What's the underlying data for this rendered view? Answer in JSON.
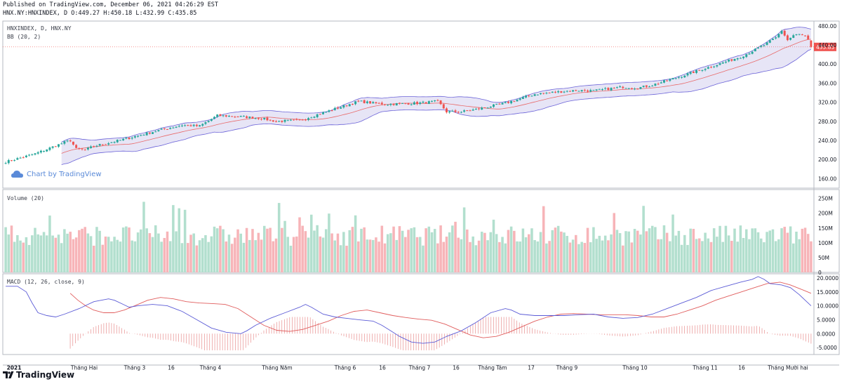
{
  "header": {
    "published": "Published on TradingView.com, December 06, 2021 04:26:29 EST",
    "ohlc": "HNX.NY:HNXINDEX, D O:449.27 H:450.18 L:432.99 C:435.85"
  },
  "panels": {
    "price_title": "HNXINDEX, D, HNX.NY",
    "bb_title": "BB (20, 2)",
    "volume_title": "Volume (20)",
    "macd_title": "MACD (12, 26, close, 9)"
  },
  "watermark": "Chart by TradingView",
  "footer": {
    "brand": "TradingView"
  },
  "colors": {
    "up": "#26a69a",
    "down": "#ef5350",
    "vol_up": "#b2dfce",
    "vol_down": "#f7b4b8",
    "bb_fill": "#e3e1f5",
    "bb_band": "#6b63d8",
    "bb_basis": "#e86a6a",
    "macd": "#5b5bd6",
    "signal": "#e05c5c",
    "hist": "#e88f8f",
    "last_price_bg": "#ef5350"
  },
  "chart_data": [
    {
      "type": "candlestick",
      "title": "HNXINDEX, D, HNX.NY",
      "indicator": "BB (20, 2)",
      "last_price_label": "435.85",
      "ylim": [
        140,
        490
      ],
      "y_ticks": [
        "480.00",
        "440.00",
        "400.00",
        "360.00",
        "320.00",
        "280.00",
        "240.00",
        "200.00",
        "160.00"
      ],
      "close_anchors": [
        [
          0,
          195
        ],
        [
          10,
          212
        ],
        [
          20,
          236
        ],
        [
          22,
          240
        ],
        [
          24,
          222
        ],
        [
          27,
          220
        ],
        [
          30,
          228
        ],
        [
          40,
          242
        ],
        [
          50,
          258
        ],
        [
          60,
          272
        ],
        [
          66,
          270
        ],
        [
          72,
          292
        ],
        [
          80,
          290
        ],
        [
          87,
          286
        ],
        [
          92,
          280
        ],
        [
          100,
          282
        ],
        [
          110,
          302
        ],
        [
          120,
          322
        ],
        [
          125,
          318
        ],
        [
          130,
          316
        ],
        [
          140,
          318
        ],
        [
          147,
          322
        ],
        [
          150,
          300
        ],
        [
          155,
          300
        ],
        [
          160,
          305
        ],
        [
          170,
          318
        ],
        [
          180,
          337
        ],
        [
          190,
          343
        ],
        [
          195,
          345
        ],
        [
          200,
          344
        ],
        [
          210,
          352
        ],
        [
          215,
          350
        ],
        [
          220,
          356
        ],
        [
          230,
          375
        ],
        [
          240,
          395
        ],
        [
          250,
          415
        ],
        [
          255,
          430
        ],
        [
          258,
          440
        ],
        [
          262,
          455
        ],
        [
          264,
          470
        ],
        [
          266,
          450
        ],
        [
          268,
          460
        ],
        [
          270,
          462
        ],
        [
          272,
          458
        ],
        [
          273,
          450
        ],
        [
          274,
          435.85
        ]
      ]
    },
    {
      "type": "bar",
      "title": "Volume (20)",
      "ylim": [
        0,
        280
      ],
      "y_ticks": [
        "250M",
        "200M",
        "150M",
        "100M",
        "50M",
        "0"
      ]
    },
    {
      "type": "line",
      "title": "MACD (12, 26, close, 9)",
      "ylim": [
        -7.5,
        21.5
      ],
      "y_ticks": [
        "20.0000",
        "15.0000",
        "10.0000",
        "5.0000",
        "0.0000",
        "-5.0000"
      ],
      "macd_anchors": [
        [
          0,
          17
        ],
        [
          4,
          17
        ],
        [
          7,
          15
        ],
        [
          9,
          11
        ],
        [
          11,
          7.5
        ],
        [
          14,
          6.5
        ],
        [
          17,
          6.0
        ],
        [
          20,
          7.0
        ],
        [
          25,
          9.0
        ],
        [
          30,
          11.5
        ],
        [
          35,
          12.5
        ],
        [
          37,
          12.0
        ],
        [
          40,
          10.5
        ],
        [
          42,
          9.5
        ],
        [
          45,
          10.0
        ],
        [
          50,
          10.5
        ],
        [
          55,
          10.0
        ],
        [
          60,
          8.0
        ],
        [
          65,
          5.0
        ],
        [
          70,
          2.0
        ],
        [
          75,
          0.5
        ],
        [
          80,
          0.0
        ],
        [
          82,
          1.0
        ],
        [
          85,
          3.0
        ],
        [
          90,
          5.5
        ],
        [
          95,
          7.5
        ],
        [
          100,
          9.5
        ],
        [
          102,
          10.5
        ],
        [
          104,
          9.5
        ],
        [
          108,
          7.0
        ],
        [
          112,
          6.0
        ],
        [
          116,
          5.5
        ],
        [
          120,
          5.0
        ],
        [
          125,
          4.5
        ],
        [
          128,
          3.0
        ],
        [
          131,
          1.0
        ],
        [
          134,
          -1.0
        ],
        [
          138,
          -3.0
        ],
        [
          142,
          -3.5
        ],
        [
          146,
          -3.0
        ],
        [
          150,
          -1.0
        ],
        [
          155,
          1.0
        ],
        [
          160,
          4.0
        ],
        [
          165,
          7.5
        ],
        [
          170,
          9.0
        ],
        [
          172,
          8.5
        ],
        [
          175,
          7.0
        ],
        [
          180,
          6.5
        ],
        [
          185,
          6.5
        ],
        [
          190,
          6.5
        ],
        [
          195,
          6.8
        ],
        [
          200,
          7.0
        ],
        [
          205,
          6.0
        ],
        [
          210,
          5.5
        ],
        [
          215,
          5.8
        ],
        [
          220,
          7.0
        ],
        [
          225,
          9.0
        ],
        [
          230,
          11.0
        ],
        [
          235,
          13.0
        ],
        [
          240,
          15.5
        ],
        [
          245,
          17.0
        ],
        [
          250,
          18.5
        ],
        [
          254,
          19.5
        ],
        [
          256,
          20.5
        ],
        [
          258,
          19.5
        ],
        [
          260,
          18.0
        ],
        [
          264,
          17.5
        ],
        [
          267,
          16.5
        ],
        [
          270,
          14.0
        ],
        [
          272,
          12.0
        ],
        [
          274,
          10.0
        ]
      ],
      "signal_anchors": [
        [
          25,
          14.5
        ],
        [
          28,
          12.0
        ],
        [
          31,
          10.0
        ],
        [
          34,
          8.5
        ],
        [
          38,
          7.5
        ],
        [
          42,
          7.5
        ],
        [
          46,
          8.5
        ],
        [
          50,
          10.0
        ],
        [
          55,
          12.0
        ],
        [
          60,
          13.0
        ],
        [
          65,
          12.5
        ],
        [
          70,
          11.5
        ],
        [
          75,
          11.0
        ],
        [
          80,
          10.8
        ],
        [
          85,
          10.5
        ],
        [
          90,
          9.0
        ],
        [
          95,
          6.0
        ],
        [
          100,
          3.0
        ],
        [
          105,
          1.2
        ],
        [
          110,
          0.8
        ],
        [
          115,
          1.5
        ],
        [
          120,
          3.0
        ],
        [
          125,
          4.5
        ],
        [
          130,
          6.5
        ],
        [
          135,
          8.0
        ],
        [
          140,
          8.5
        ],
        [
          145,
          7.5
        ],
        [
          150,
          6.5
        ],
        [
          155,
          5.8
        ],
        [
          160,
          5.2
        ],
        [
          165,
          4.8
        ],
        [
          170,
          3.5
        ],
        [
          175,
          1.5
        ],
        [
          180,
          -0.5
        ],
        [
          185,
          -1.5
        ],
        [
          190,
          -1.0
        ],
        [
          195,
          0.5
        ],
        [
          200,
          2.5
        ],
        [
          205,
          4.5
        ],
        [
          210,
          6.0
        ],
        [
          215,
          7.0
        ],
        [
          220,
          7.2
        ],
        [
          225,
          7.0
        ],
        [
          230,
          6.8
        ],
        [
          235,
          6.8
        ],
        [
          240,
          6.8
        ],
        [
          245,
          6.5
        ],
        [
          250,
          6.0
        ],
        [
          255,
          6.0
        ],
        [
          260,
          7.0
        ],
        [
          265,
          8.5
        ],
        [
          270,
          10.0
        ],
        [
          275,
          12.0
        ],
        [
          280,
          13.5
        ],
        [
          285,
          15.0
        ],
        [
          290,
          16.5
        ],
        [
          295,
          18.0
        ],
        [
          300,
          18.5
        ],
        [
          304,
          17.5
        ],
        [
          308,
          16.0
        ],
        [
          312,
          14.5
        ]
      ]
    }
  ],
  "x_axis": {
    "labels": [
      "2021",
      "Tháng Hai",
      "Tháng 3",
      "16",
      "Tháng 4",
      "Tháng Năm",
      "Tháng 6",
      "16",
      "Tháng 7",
      "16",
      "Tháng Tám",
      "17",
      "Tháng 9",
      "Tháng 10",
      "Tháng 11",
      "16",
      "Tháng Mười hai"
    ]
  }
}
